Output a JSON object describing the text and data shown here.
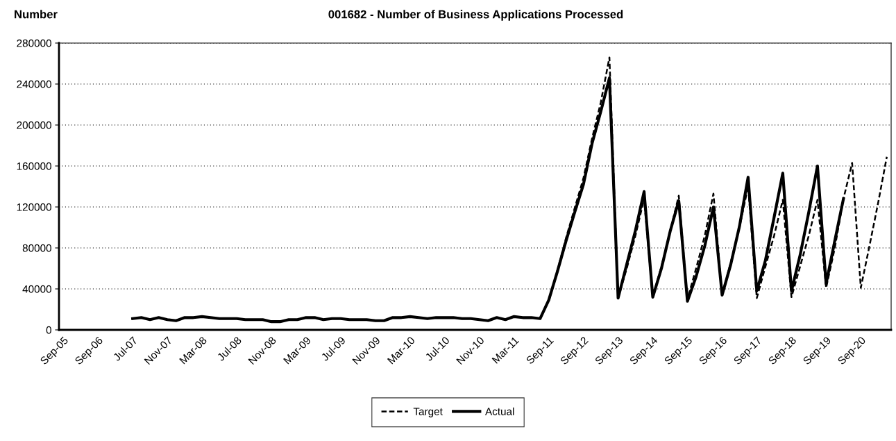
{
  "chart_data": {
    "type": "line",
    "title": "001682 - Number of Business Applications Processed",
    "ylabel": "Number",
    "categories": [
      "Sep-05",
      null,
      null,
      null,
      "Sep-06",
      null,
      null,
      null,
      "Jul-07",
      null,
      null,
      null,
      "Nov-07",
      null,
      null,
      null,
      "Mar-08",
      null,
      null,
      null,
      "Jul-08",
      null,
      null,
      null,
      "Nov-08",
      null,
      null,
      null,
      "Mar-09",
      null,
      null,
      null,
      "Jul-09",
      null,
      null,
      null,
      "Nov-09",
      null,
      null,
      null,
      "Mar-10",
      null,
      null,
      null,
      "Jul-10",
      null,
      null,
      null,
      "Nov-10",
      null,
      null,
      null,
      "Mar-11",
      null,
      null,
      null,
      "Sep-11",
      null,
      null,
      null,
      "Sep-12",
      null,
      null,
      null,
      "Sep-13",
      null,
      null,
      null,
      "Sep-14",
      null,
      null,
      null,
      "Sep-15",
      null,
      null,
      null,
      "Sep-16",
      null,
      null,
      null,
      "Sep-17",
      null,
      null,
      null,
      "Sep-18",
      null,
      null,
      null,
      "Sep-19",
      null,
      null,
      null,
      "Sep-20",
      null,
      null,
      null
    ],
    "series": [
      {
        "name": "Target",
        "color": "#000000",
        "line_style": "dashed",
        "values": [
          null,
          null,
          null,
          null,
          null,
          null,
          null,
          null,
          null,
          null,
          null,
          null,
          null,
          null,
          null,
          null,
          null,
          null,
          null,
          null,
          null,
          null,
          null,
          null,
          null,
          null,
          null,
          null,
          null,
          null,
          null,
          null,
          null,
          null,
          null,
          null,
          null,
          null,
          null,
          null,
          null,
          null,
          null,
          null,
          null,
          null,
          null,
          null,
          null,
          null,
          null,
          null,
          null,
          null,
          null,
          null,
          28000,
          58000,
          90000,
          119000,
          148000,
          187000,
          222000,
          266000,
          31000,
          60000,
          92000,
          128000,
          32000,
          62000,
          96000,
          131000,
          30000,
          60000,
          92000,
          133000,
          34000,
          66000,
          100000,
          140000,
          31000,
          62000,
          92000,
          127000,
          32000,
          62000,
          92000,
          127000,
          41000,
          80000,
          128000,
          163000,
          41000,
          82000,
          124000,
          169000
        ]
      },
      {
        "name": "Actual",
        "color": "#000000",
        "line_style": "solid",
        "values": [
          null,
          null,
          null,
          null,
          null,
          null,
          null,
          null,
          11000,
          12000,
          10000,
          12000,
          10000,
          9000,
          12000,
          12000,
          13000,
          12000,
          11000,
          11000,
          11000,
          10000,
          10000,
          10000,
          8000,
          8000,
          10000,
          10000,
          12000,
          12000,
          10000,
          11000,
          11000,
          10000,
          10000,
          10000,
          9000,
          9000,
          12000,
          12000,
          13000,
          12000,
          11000,
          12000,
          12000,
          12000,
          11000,
          11000,
          10000,
          9000,
          12000,
          10000,
          13000,
          12000,
          12000,
          11000,
          29000,
          57000,
          87000,
          115000,
          142000,
          182000,
          213000,
          246000,
          31000,
          64000,
          97000,
          135000,
          32000,
          60000,
          96000,
          126000,
          28000,
          52000,
          82000,
          120000,
          34000,
          64000,
          101000,
          149000,
          38000,
          68000,
          110000,
          153000,
          38000,
          73000,
          115000,
          160000,
          45000,
          87000,
          128000,
          null,
          null,
          null,
          null,
          null
        ]
      }
    ],
    "ylim": [
      0,
      280000
    ],
    "yticks": [
      0,
      40000,
      80000,
      120000,
      160000,
      200000,
      240000,
      280000
    ],
    "grid": "y",
    "legend": "bottom"
  }
}
